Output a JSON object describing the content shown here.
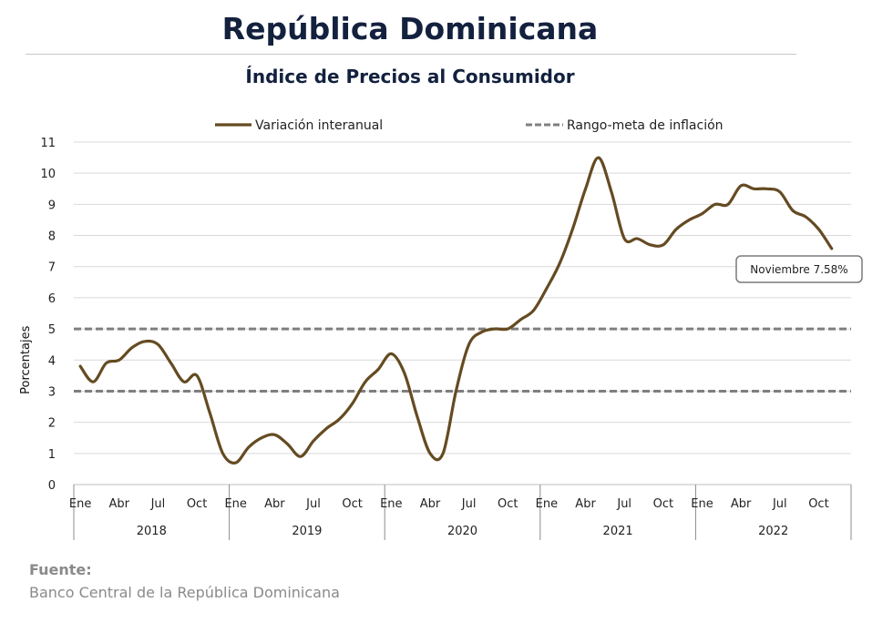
{
  "title": "República Dominicana",
  "subtitle": "Índice de Precios al Consumidor",
  "source": {
    "heading": "Fuente:",
    "text": "Banco Central de la República Dominicana"
  },
  "colors": {
    "series": "#654b22",
    "target": "#7f7f7f",
    "title": "#13213e",
    "grid": "#d9d9d9"
  },
  "chart_data": {
    "type": "line",
    "ylabel": "Porcentajes",
    "ylim": [
      0,
      11
    ],
    "yticks": [
      0,
      1,
      2,
      3,
      4,
      5,
      6,
      7,
      8,
      9,
      10,
      11
    ],
    "grid": true,
    "legend_position": "top",
    "month_labels": [
      "Ene",
      "Abr",
      "Jul",
      "Oct"
    ],
    "years": [
      "2018",
      "2019",
      "2020",
      "2021",
      "2022"
    ],
    "series": [
      {
        "name": "Variación interanual",
        "style": "solid",
        "values": [
          3.8,
          3.3,
          3.9,
          4.0,
          4.4,
          4.6,
          4.5,
          3.9,
          3.3,
          3.5,
          2.3,
          1.0,
          0.7,
          1.2,
          1.5,
          1.6,
          1.3,
          0.9,
          1.4,
          1.8,
          2.1,
          2.6,
          3.3,
          3.7,
          4.2,
          3.6,
          2.2,
          1.0,
          1.0,
          3.0,
          4.5,
          4.9,
          5.0,
          5.0,
          5.3,
          5.6,
          6.3,
          7.1,
          8.2,
          9.5,
          10.5,
          9.4,
          7.9,
          7.9,
          7.7,
          7.7,
          8.2,
          8.5,
          8.7,
          9.0,
          9.0,
          9.6,
          9.5,
          9.5,
          9.4,
          8.8,
          8.6,
          8.2,
          7.58
        ]
      },
      {
        "name": "Rango-meta de inflación",
        "style": "dashed",
        "lines": [
          3,
          5
        ]
      }
    ],
    "annotation": {
      "text": "Noviembre 7.58%",
      "x_index": 58,
      "value": 7.58
    }
  }
}
